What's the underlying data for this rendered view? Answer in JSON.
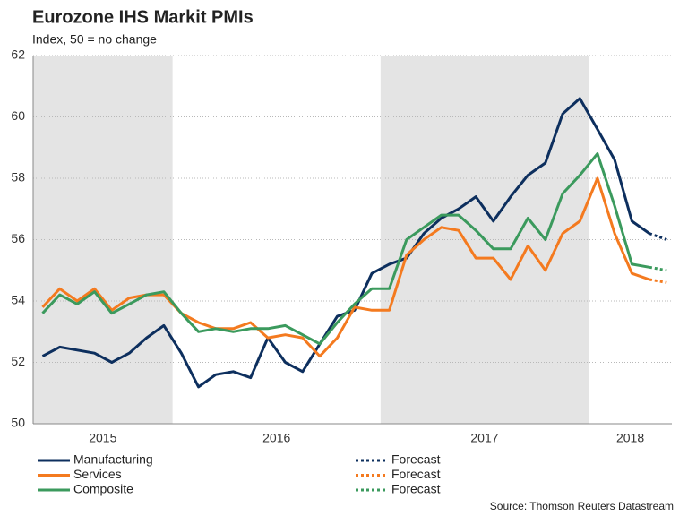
{
  "chart_data": {
    "type": "line",
    "title": "Eurozone IHS Markit PMIs",
    "subtitle": "Index, 50 = no change",
    "source": "Source: Thomson Reuters Datastream",
    "x": [
      2015.375,
      2015.458,
      2015.542,
      2015.625,
      2015.708,
      2015.792,
      2015.875,
      2015.958,
      2016.042,
      2016.125,
      2016.208,
      2016.292,
      2016.375,
      2016.458,
      2016.542,
      2016.625,
      2016.708,
      2016.792,
      2016.875,
      2016.958,
      2017.042,
      2017.125,
      2017.208,
      2017.292,
      2017.375,
      2017.458,
      2017.542,
      2017.625,
      2017.708,
      2017.792,
      2017.875,
      2017.958,
      2018.042,
      2018.125,
      2018.208,
      2018.292,
      2018.375
    ],
    "xlim": [
      2015.33,
      2018.4
    ],
    "xticks": [
      2015,
      2016,
      2017,
      2018
    ],
    "shade_alternate_years": true,
    "ylim": [
      50,
      62
    ],
    "yticks": [
      50,
      52,
      54,
      56,
      58,
      60,
      62
    ],
    "grid": true,
    "series": [
      {
        "name": "Manufacturing",
        "color": "#0d2f5e",
        "forecast_name": "Forecast",
        "forecast_start": 35,
        "values": [
          52.2,
          52.5,
          52.4,
          52.3,
          52.0,
          52.3,
          52.8,
          53.2,
          52.3,
          51.2,
          51.6,
          51.7,
          51.5,
          52.8,
          52.0,
          51.7,
          52.6,
          53.5,
          53.7,
          54.9,
          55.2,
          55.4,
          56.2,
          56.7,
          57.0,
          57.4,
          56.6,
          57.4,
          58.1,
          58.5,
          60.1,
          60.6,
          59.6,
          58.6,
          56.6,
          56.2,
          56.0
        ]
      },
      {
        "name": "Services",
        "color": "#f47a1f",
        "forecast_name": "Forecast",
        "forecast_start": 35,
        "values": [
          53.8,
          54.4,
          54.0,
          54.4,
          53.7,
          54.1,
          54.2,
          54.2,
          53.6,
          53.3,
          53.1,
          53.1,
          53.3,
          52.8,
          52.9,
          52.8,
          52.2,
          52.8,
          53.8,
          53.7,
          53.7,
          55.5,
          56.0,
          56.4,
          56.3,
          55.4,
          55.4,
          54.7,
          55.8,
          55.0,
          56.2,
          56.6,
          58.0,
          56.2,
          54.9,
          54.7,
          54.6
        ]
      },
      {
        "name": "Composite",
        "color": "#3b9a5d",
        "forecast_name": "Forecast",
        "forecast_start": 35,
        "values": [
          53.6,
          54.2,
          53.9,
          54.3,
          53.6,
          53.9,
          54.2,
          54.3,
          53.6,
          53.0,
          53.1,
          53.0,
          53.1,
          53.1,
          53.2,
          52.9,
          52.6,
          53.3,
          53.9,
          54.4,
          54.4,
          56.0,
          56.4,
          56.8,
          56.8,
          56.3,
          55.7,
          55.7,
          56.7,
          56.0,
          57.5,
          58.1,
          58.8,
          57.1,
          55.2,
          55.1,
          55.0
        ]
      }
    ]
  }
}
